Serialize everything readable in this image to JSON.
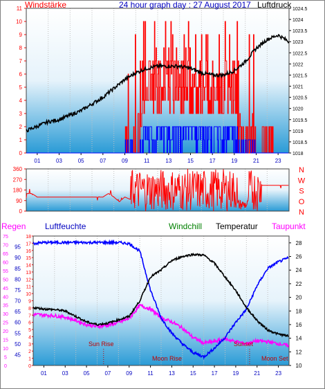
{
  "chart_data": [
    {
      "type": "line",
      "title": "24 hour graph day : 27 August 2017",
      "left_axis_label": "Windstärke",
      "right_axis_label": "Luftdruck",
      "ylim_left": [
        0,
        11
      ],
      "ylim_right": [
        1018,
        1024.5
      ],
      "left_ticks": [
        "0",
        "1",
        "2",
        "3",
        "4",
        "5",
        "6",
        "7",
        "8",
        "9",
        "10",
        "11"
      ],
      "right_ticks": [
        "1018",
        "1018.5",
        "1019",
        "1019.5",
        "1020",
        "1020.5",
        "1021",
        "1021.5",
        "1022",
        "1022.5",
        "1023",
        "1023.5",
        "1024",
        "1024.5"
      ],
      "x_ticks": [
        "01",
        "03",
        "05",
        "07",
        "09",
        "11",
        "13",
        "15",
        "17",
        "19",
        "21",
        "23"
      ],
      "xlim": [
        0,
        24
      ],
      "series": [
        {
          "name": "Luftdruck",
          "color": "#000000",
          "x": [
            0,
            1,
            2,
            3,
            4,
            5,
            6,
            7,
            8,
            9,
            10,
            11,
            12,
            13,
            14,
            15,
            16,
            17,
            18,
            19,
            20,
            21,
            22,
            23,
            24
          ],
          "y": [
            1019.0,
            1019.2,
            1019.4,
            1019.5,
            1019.7,
            1019.9,
            1020.2,
            1020.5,
            1020.9,
            1021.3,
            1021.6,
            1021.8,
            1021.9,
            1021.9,
            1021.9,
            1021.8,
            1021.6,
            1021.5,
            1021.5,
            1021.7,
            1022.1,
            1022.7,
            1023.1,
            1023.3,
            1023.0
          ]
        }
      ]
    },
    {
      "type": "line",
      "title": "",
      "left_ticks": [
        "0",
        "90",
        "180",
        "270",
        "360"
      ],
      "right_axis_label": "N W S O N",
      "ylim": [
        0,
        360
      ],
      "xlim": [
        0,
        24
      ],
      "series": [
        {
          "name": "",
          "color": "#ff0000",
          "x": [
            0,
            0.5,
            1,
            1.5,
            2,
            3,
            4,
            5,
            6,
            7,
            7.5,
            8,
            8.5,
            9,
            10,
            11,
            12,
            13,
            14,
            15,
            16,
            17,
            18,
            19,
            20,
            20.5,
            21,
            22,
            23,
            24
          ],
          "y": [
            150,
            150,
            120,
            120,
            120,
            120,
            120,
            120,
            120,
            120,
            150,
            120,
            80,
            120,
            80,
            200,
            220,
            180,
            200,
            160,
            200,
            150,
            120,
            60,
            60,
            300,
            220,
            220,
            220,
            220
          ]
        }
      ]
    },
    {
      "type": "line",
      "left_axis_label": "Regen",
      "left_axis2_label": "Luftfeuchte",
      "center_label": "Windchill",
      "right_label": "Temperatur",
      "right_label2": "Taupunkt",
      "ylim_humidity": [
        40,
        100
      ],
      "ylim_temp": [
        10,
        29
      ],
      "left_ticks_outer": [
        "0",
        "5",
        "10",
        "15",
        "20",
        "25",
        "30",
        "35",
        "40",
        "45",
        "50",
        "55",
        "60",
        "65",
        "70",
        "75"
      ],
      "left_ticks_humidity": [
        "45",
        "50",
        "55",
        "60",
        "65",
        "70",
        "75",
        "80",
        "85",
        "90",
        "95"
      ],
      "left_ticks_inner": [
        "0",
        "1",
        "2",
        "3",
        "4",
        "5",
        "6",
        "7",
        "8",
        "9",
        "10",
        "11",
        "12",
        "13",
        "14",
        "15",
        "16",
        "17",
        "18"
      ],
      "right_ticks": [
        "10",
        "12",
        "14",
        "16",
        "18",
        "20",
        "22",
        "24",
        "26",
        "28"
      ],
      "x_ticks": [
        "01",
        "03",
        "05",
        "07",
        "09",
        "11",
        "13",
        "15",
        "17",
        "19",
        "21",
        "23"
      ],
      "xlim": [
        0,
        24
      ],
      "annotations": [
        "Sun Rise",
        "Moon Rise",
        "Sunset",
        "Moon Set",
        "Moon Set"
      ],
      "series": [
        {
          "name": "Temperatur",
          "color": "#000000",
          "x": [
            0,
            1,
            2,
            3,
            4,
            5,
            6,
            7,
            8,
            9,
            10,
            11,
            12,
            13,
            14,
            15,
            16,
            17,
            18,
            19,
            20,
            21,
            22,
            23,
            24
          ],
          "y": [
            18.5,
            18.3,
            18.2,
            18.0,
            17.2,
            16.4,
            16.0,
            16.2,
            16.7,
            17.2,
            19.5,
            23.0,
            24.0,
            25.4,
            26.0,
            26.3,
            26.2,
            25.0,
            23.0,
            21.0,
            18.5,
            16.6,
            15.2,
            14.6,
            14.3
          ]
        },
        {
          "name": "Taupunkt",
          "color": "#ff00ff",
          "x": [
            0,
            1,
            2,
            3,
            4,
            5,
            6,
            7,
            8,
            9,
            10,
            11,
            12,
            13,
            14,
            15,
            16,
            17,
            18,
            19,
            20,
            21,
            22,
            23,
            24
          ],
          "y": [
            17.5,
            17.4,
            17.3,
            17.1,
            16.6,
            16.0,
            15.7,
            15.9,
            16.3,
            16.9,
            18.8,
            18.3,
            17.0,
            16.4,
            15.5,
            14.1,
            13.3,
            13.5,
            13.9,
            13.5,
            13.2,
            13.6,
            13.5,
            13.2,
            12.9
          ]
        },
        {
          "name": "Luftfeuchte",
          "color": "#0000ff",
          "x": [
            0,
            1,
            2,
            3,
            4,
            5,
            6,
            7,
            8,
            9,
            10,
            11,
            12,
            13,
            14,
            15,
            16,
            17,
            18,
            19,
            20,
            21,
            22,
            23,
            24
          ],
          "y": [
            96.5,
            97,
            97,
            97,
            97,
            97,
            97,
            97,
            97,
            96.5,
            93,
            75,
            62,
            55,
            50,
            46,
            44,
            48,
            53,
            60,
            66,
            77,
            85,
            88,
            90
          ]
        }
      ]
    }
  ]
}
